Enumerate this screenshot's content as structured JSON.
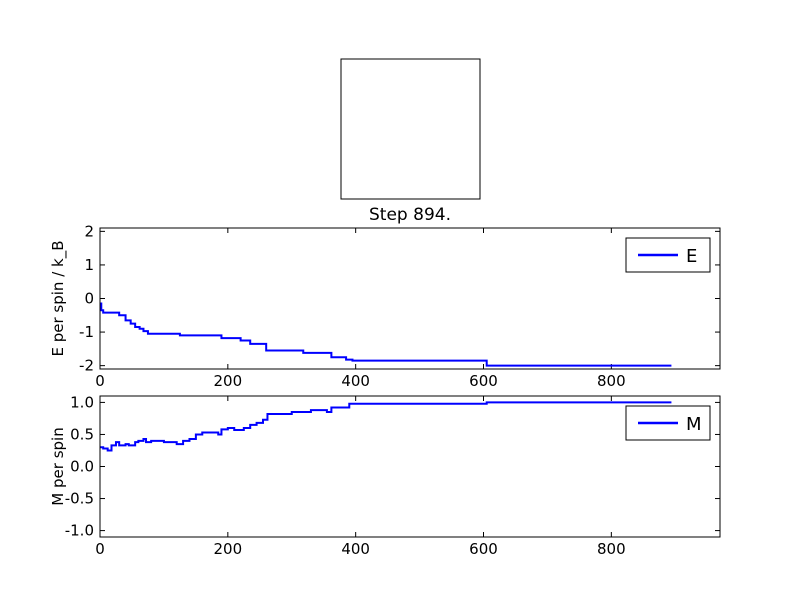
{
  "chart_data": [
    {
      "type": "line",
      "title": "Step 894.",
      "y_label": "E per spin / k_B",
      "step": "post",
      "x": [
        0,
        2,
        5,
        30,
        40,
        48,
        55,
        62,
        68,
        75,
        125,
        190,
        220,
        235,
        260,
        318,
        362,
        385,
        395,
        605,
        894
      ],
      "series": [
        {
          "name": "E",
          "color": "#0000ff",
          "values": [
            -0.15,
            -0.35,
            -0.42,
            -0.5,
            -0.65,
            -0.75,
            -0.85,
            -0.9,
            -0.97,
            -1.05,
            -1.1,
            -1.18,
            -1.25,
            -1.35,
            -1.55,
            -1.62,
            -1.75,
            -1.82,
            -1.85,
            -2.0,
            -2.0
          ]
        }
      ],
      "xlim": [
        0,
        970
      ],
      "xticks": [
        0,
        200,
        400,
        600,
        800
      ],
      "ylim": [
        -2.1,
        2.1
      ],
      "yticks": [
        -2,
        -1,
        0,
        1,
        2
      ],
      "legend": "upper right",
      "grid": false
    },
    {
      "type": "line",
      "y_label": "M per spin",
      "step": "post",
      "x": [
        0,
        5,
        12,
        18,
        25,
        30,
        40,
        45,
        55,
        60,
        68,
        72,
        80,
        100,
        120,
        130,
        140,
        150,
        160,
        185,
        190,
        200,
        210,
        225,
        235,
        245,
        255,
        262,
        300,
        330,
        355,
        362,
        390,
        605,
        894
      ],
      "series": [
        {
          "name": "M",
          "color": "#0000ff",
          "values": [
            0.3,
            0.28,
            0.25,
            0.33,
            0.38,
            0.33,
            0.35,
            0.33,
            0.38,
            0.4,
            0.43,
            0.38,
            0.4,
            0.38,
            0.35,
            0.4,
            0.43,
            0.5,
            0.53,
            0.5,
            0.58,
            0.6,
            0.57,
            0.6,
            0.65,
            0.68,
            0.73,
            0.82,
            0.85,
            0.88,
            0.85,
            0.92,
            0.98,
            1.0,
            1.0
          ]
        }
      ],
      "xlim": [
        0,
        970
      ],
      "xticks": [
        0,
        200,
        400,
        600,
        800
      ],
      "ylim": [
        -1.1,
        1.1
      ],
      "yticks": [
        {
          "value": -1.0,
          "label": "-1.0"
        },
        -0.5,
        {
          "value": 0.0,
          "label": "0.0"
        },
        0.5,
        {
          "value": 1.0,
          "label": "1.0"
        }
      ],
      "legend": "upper right",
      "grid": false
    }
  ]
}
